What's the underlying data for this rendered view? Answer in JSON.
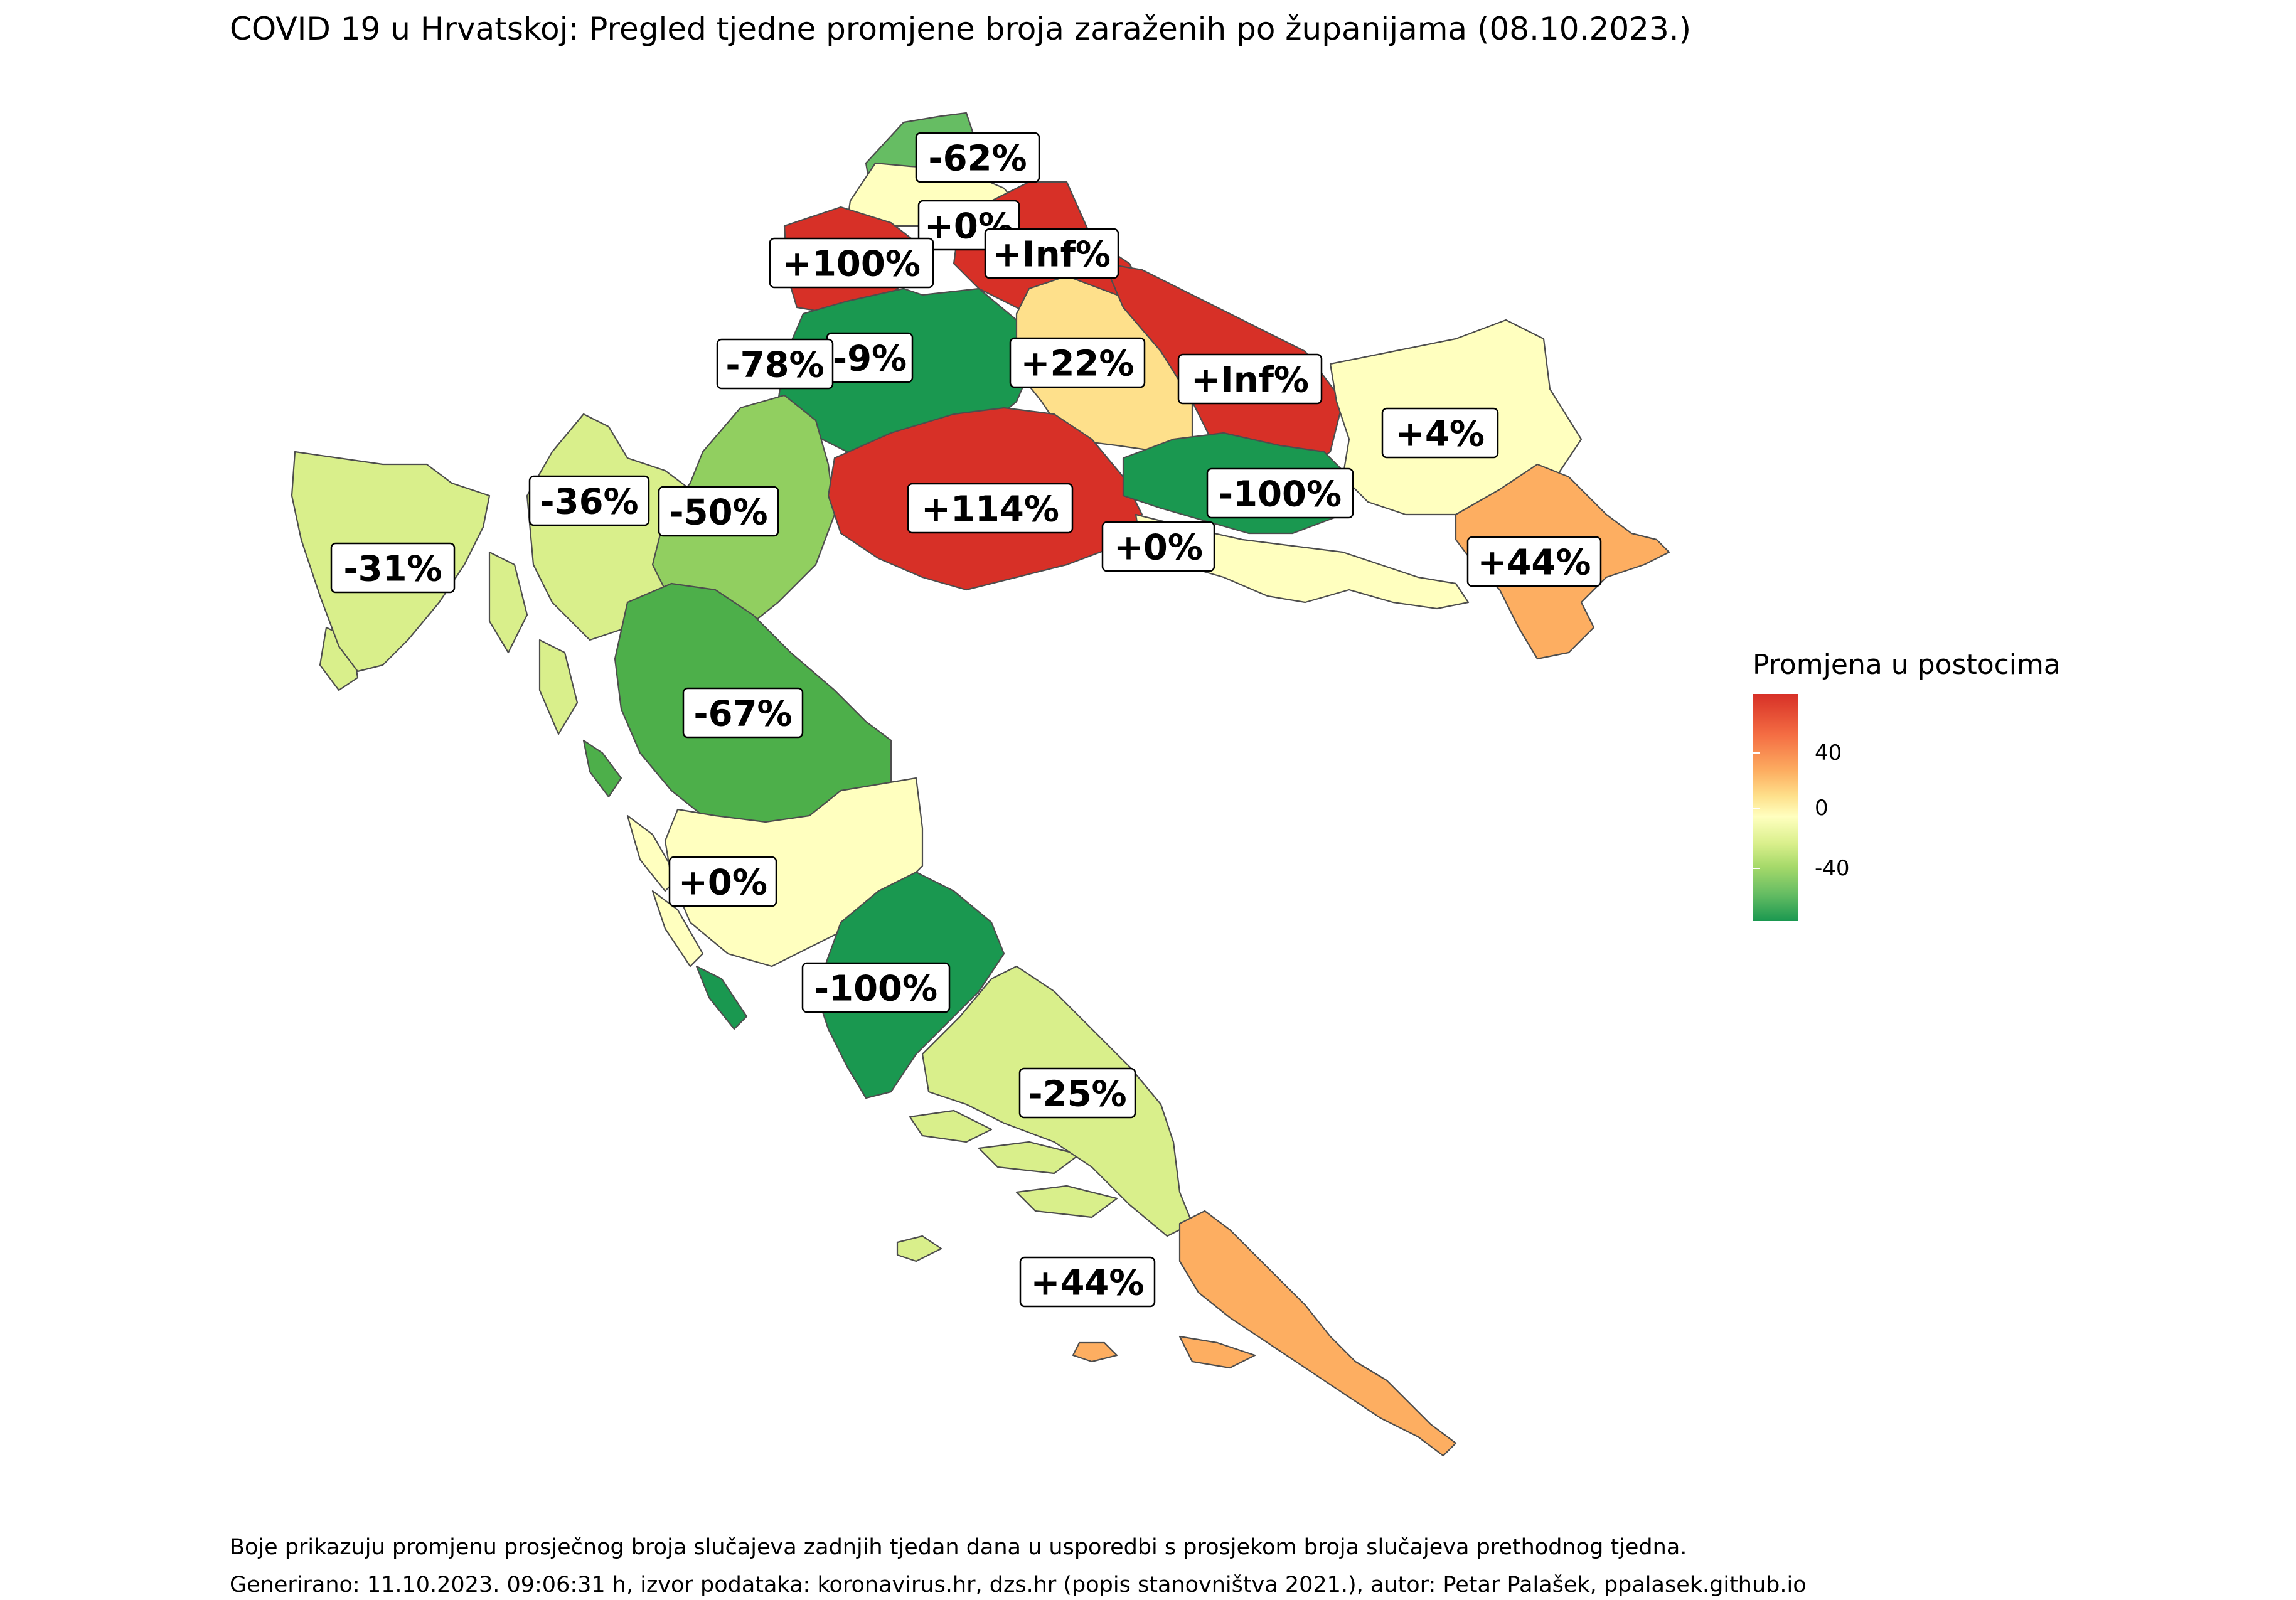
{
  "title": "COVID 19 u Hrvatskoj: Pregled tjedne promjene broja zaraženih po županijama (08.10.2023.)",
  "legend": {
    "title": "Promjena u postocima",
    "ticks": [
      "40",
      "0",
      "-40"
    ],
    "tick_values": [
      40,
      0,
      -40
    ],
    "range": [
      -75,
      75
    ],
    "colors": [
      "#d73027",
      "#fdae61",
      "#ffffbf",
      "#a6d96a",
      "#1a9850"
    ]
  },
  "regions": [
    {
      "label": "-62%",
      "value": -62,
      "color": "#66bd63"
    },
    {
      "label": "+0%",
      "value": 0,
      "color": "#ffffbf"
    },
    {
      "label": "+100%",
      "value": 100,
      "color": "#d73027"
    },
    {
      "label": "+Inf%",
      "value": "Inf",
      "color": "#d73027"
    },
    {
      "label": "-9%",
      "value": -9,
      "color": "#ffffbf"
    },
    {
      "label": "-78%",
      "value": -78,
      "color": "#1a9850"
    },
    {
      "label": "+22%",
      "value": 22,
      "color": "#fee08b"
    },
    {
      "label": "+Inf%",
      "value": "Inf",
      "color": "#d73027"
    },
    {
      "label": "+4%",
      "value": 4,
      "color": "#ffffbf"
    },
    {
      "label": "-36%",
      "value": -36,
      "color": "#d9ef8b"
    },
    {
      "label": "-50%",
      "value": -50,
      "color": "#91cf60"
    },
    {
      "label": "+114%",
      "value": 114,
      "color": "#d73027"
    },
    {
      "label": "-100%",
      "value": -100,
      "color": "#1a9850"
    },
    {
      "label": "-31%",
      "value": -31,
      "color": "#d9ef8b"
    },
    {
      "label": "+0%",
      "value": 0,
      "color": "#ffffbf"
    },
    {
      "label": "+44%",
      "value": 44,
      "color": "#fdae61"
    },
    {
      "label": "-67%",
      "value": -67,
      "color": "#4daf4a"
    },
    {
      "label": "+0%",
      "value": 0,
      "color": "#ffffbf"
    },
    {
      "label": "-100%",
      "value": -100,
      "color": "#1a9850"
    },
    {
      "label": "-25%",
      "value": -25,
      "color": "#d9ef8b"
    },
    {
      "label": "+44%",
      "value": 44,
      "color": "#fdae61"
    }
  ],
  "caption": {
    "line1": "Boje prikazuju promjenu prosječnog broja slučajeva zadnjih tjedan dana u usporedbi s prosjekom broja slučajeva prethodnog tjedna.",
    "line2": "Generirano: 11.10.2023. 09:06:31 h, izvor podataka: koronavirus.hr, dzs.hr (popis stanovništva 2021.), autor: Petar Palašek, ppalasek.github.io"
  }
}
